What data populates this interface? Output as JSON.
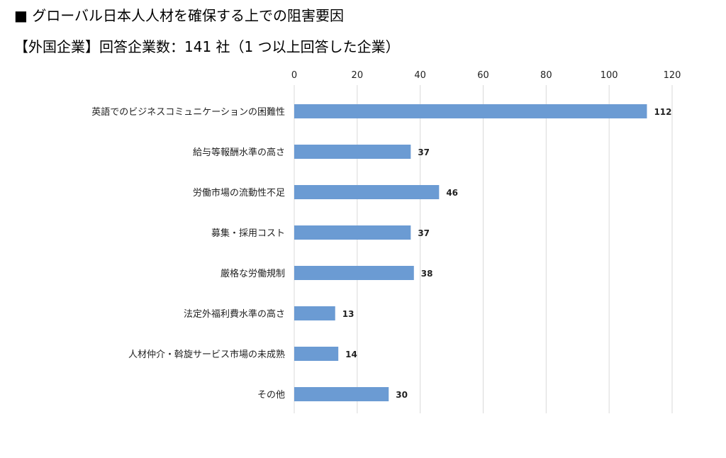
{
  "title": "■ グローバル日本人人材を確保する上での阻害要因",
  "subtitle": "【外国企業】回答企業数：141 社（1 つ以上回答した企業）",
  "chart_data": {
    "type": "bar",
    "orientation": "horizontal",
    "categories": [
      "英語でのビジネスコミュニケーションの困難性",
      "給与等報酬水準の高さ",
      "労働市場の流動性不足",
      "募集・採用コスト",
      "厳格な労働規制",
      "法定外福利費水準の高さ",
      "人材仲介・斡旋サービス市場の未成熟",
      "その他"
    ],
    "values": [
      112,
      37,
      46,
      37,
      38,
      13,
      14,
      30
    ],
    "xlim": [
      0,
      120
    ],
    "xticks": [
      0,
      20,
      40,
      60,
      80,
      100,
      120
    ],
    "grid": true,
    "bar_color": "#6b9bd3"
  }
}
